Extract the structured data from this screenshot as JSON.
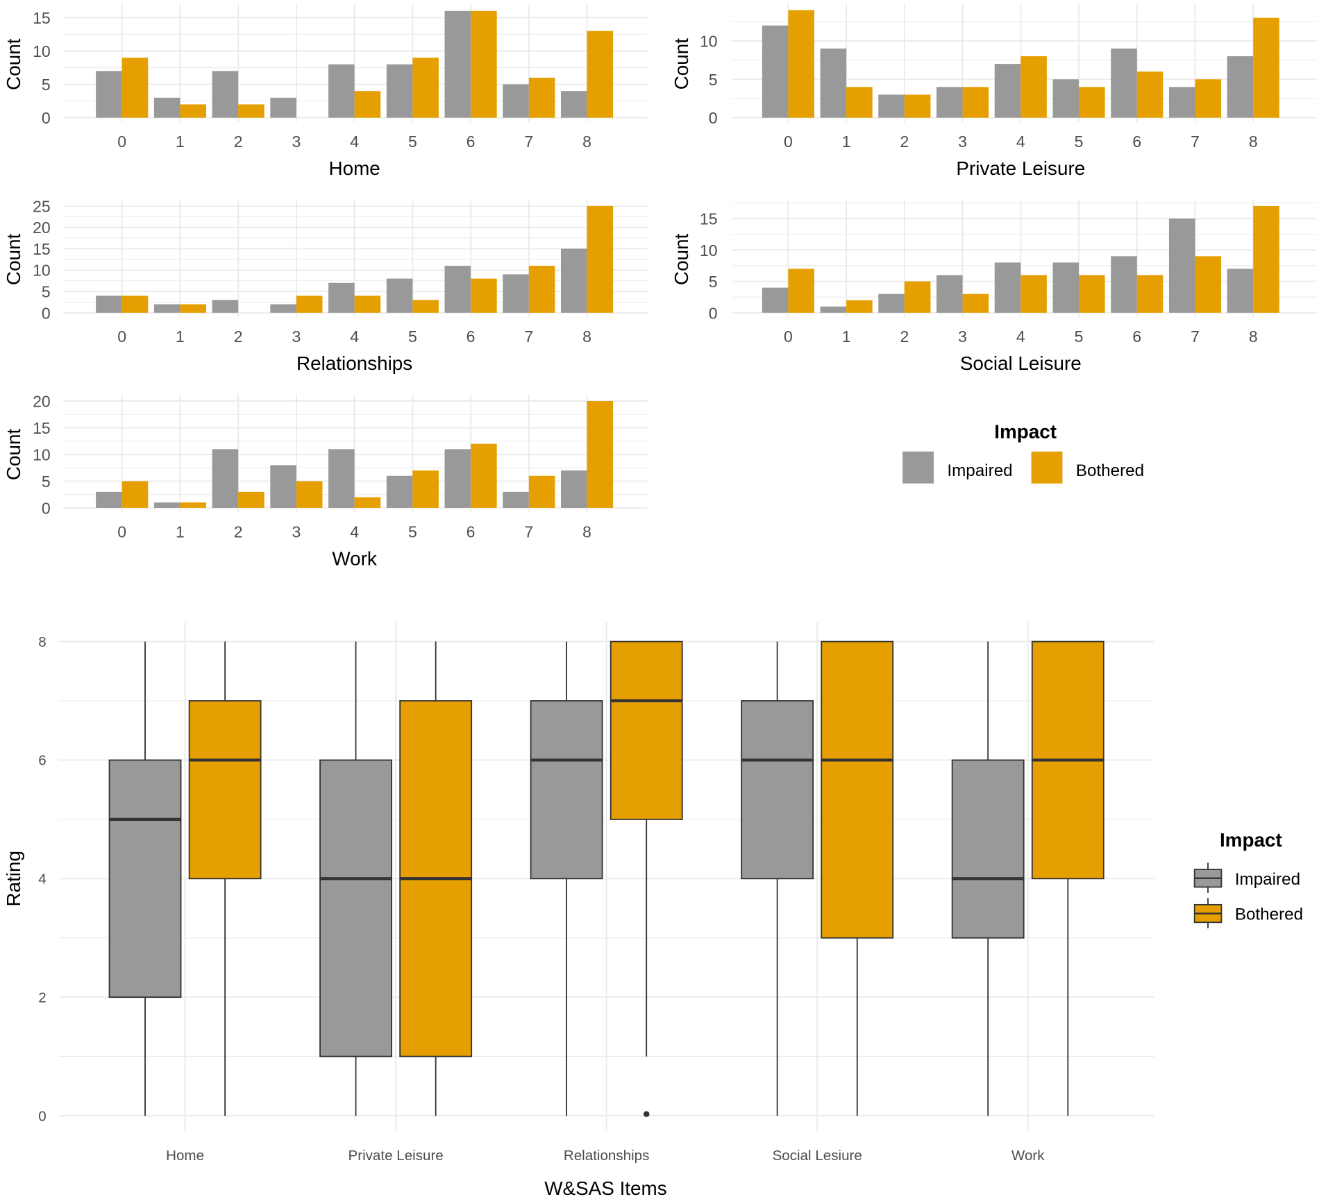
{
  "colors": {
    "Impaired": "#999999",
    "Bothered": "#E69F00",
    "grid": "#ebebeb",
    "box_line": "#333333"
  },
  "legend_top": {
    "title": "Impact",
    "items": [
      "Impaired",
      "Bothered"
    ],
    "placement": "right of panels"
  },
  "legend_bottom": {
    "title": "Impact",
    "items": [
      "Impaired",
      "Bothered"
    ],
    "placement": "right"
  },
  "chart_data": [
    {
      "type": "bar",
      "panel": "Home",
      "xlabel": "Home",
      "ylabel": "Count",
      "categories": [
        "0",
        "1",
        "2",
        "3",
        "4",
        "5",
        "6",
        "7",
        "8"
      ],
      "yticks": [
        0,
        5,
        10,
        15
      ],
      "ylim": [
        0,
        16
      ],
      "series": [
        {
          "name": "Impaired",
          "values": [
            7,
            3,
            7,
            3,
            8,
            8,
            16,
            5,
            4
          ]
        },
        {
          "name": "Bothered",
          "values": [
            9,
            2,
            2,
            0,
            4,
            9,
            16,
            6,
            13
          ]
        }
      ]
    },
    {
      "type": "bar",
      "panel": "Private Leisure",
      "xlabel": "Private Leisure",
      "ylabel": "Count",
      "categories": [
        "0",
        "1",
        "2",
        "3",
        "4",
        "5",
        "6",
        "7",
        "8"
      ],
      "yticks": [
        0,
        5,
        10
      ],
      "ylim": [
        0,
        14
      ],
      "series": [
        {
          "name": "Impaired",
          "values": [
            12,
            9,
            3,
            4,
            7,
            5,
            9,
            4,
            8
          ]
        },
        {
          "name": "Bothered",
          "values": [
            14,
            4,
            3,
            4,
            8,
            4,
            6,
            5,
            13
          ]
        }
      ]
    },
    {
      "type": "bar",
      "panel": "Relationships",
      "xlabel": "Relationships",
      "ylabel": "Count",
      "categories": [
        "0",
        "1",
        "2",
        "3",
        "4",
        "5",
        "6",
        "7",
        "8"
      ],
      "yticks": [
        0,
        5,
        10,
        15,
        20,
        25
      ],
      "ylim": [
        0,
        25
      ],
      "series": [
        {
          "name": "Impaired",
          "values": [
            4,
            2,
            3,
            2,
            7,
            8,
            11,
            9,
            15
          ]
        },
        {
          "name": "Bothered",
          "values": [
            4,
            2,
            0,
            4,
            4,
            3,
            8,
            11,
            25
          ]
        }
      ]
    },
    {
      "type": "bar",
      "panel": "Social Leisure",
      "xlabel": "Social Leisure",
      "ylabel": "Count",
      "categories": [
        "0",
        "1",
        "2",
        "3",
        "4",
        "5",
        "6",
        "7",
        "8"
      ],
      "yticks": [
        0,
        5,
        10,
        15
      ],
      "ylim": [
        0,
        17
      ],
      "series": [
        {
          "name": "Impaired",
          "values": [
            4,
            1,
            3,
            6,
            8,
            8,
            9,
            15,
            7
          ]
        },
        {
          "name": "Bothered",
          "values": [
            7,
            2,
            5,
            3,
            6,
            6,
            6,
            9,
            17
          ]
        }
      ]
    },
    {
      "type": "bar",
      "panel": "Work",
      "xlabel": "Work",
      "ylabel": "Count",
      "categories": [
        "0",
        "1",
        "2",
        "3",
        "4",
        "5",
        "6",
        "7",
        "8"
      ],
      "yticks": [
        0,
        5,
        10,
        15,
        20
      ],
      "ylim": [
        0,
        20
      ],
      "series": [
        {
          "name": "Impaired",
          "values": [
            3,
            1,
            11,
            8,
            11,
            6,
            11,
            3,
            7
          ]
        },
        {
          "name": "Bothered",
          "values": [
            5,
            1,
            3,
            5,
            2,
            7,
            12,
            6,
            20
          ]
        }
      ]
    },
    {
      "type": "boxplot",
      "xlabel": "W&SAS Items",
      "ylabel": "Rating",
      "categories": [
        "Home",
        "Private Leisure",
        "Relationships",
        "Social Lesiure",
        "Work"
      ],
      "yticks": [
        0,
        2,
        4,
        6,
        8
      ],
      "ylim": [
        0,
        8
      ],
      "series": [
        {
          "name": "Impaired",
          "boxes": [
            {
              "min": 0,
              "q1": 2,
              "median": 5,
              "q3": 6,
              "max": 8,
              "outliers": []
            },
            {
              "min": 0,
              "q1": 1,
              "median": 4,
              "q3": 6,
              "max": 8,
              "outliers": []
            },
            {
              "min": 0,
              "q1": 4,
              "median": 6,
              "q3": 7,
              "max": 8,
              "outliers": []
            },
            {
              "min": 0,
              "q1": 4,
              "median": 6,
              "q3": 7,
              "max": 8,
              "outliers": []
            },
            {
              "min": 0,
              "q1": 3,
              "median": 4,
              "q3": 6,
              "max": 8,
              "outliers": []
            }
          ]
        },
        {
          "name": "Bothered",
          "boxes": [
            {
              "min": 0,
              "q1": 4,
              "median": 6,
              "q3": 7,
              "max": 8,
              "outliers": []
            },
            {
              "min": 0,
              "q1": 1,
              "median": 4,
              "q3": 7,
              "max": 8,
              "outliers": []
            },
            {
              "min": 1,
              "q1": 5,
              "median": 7,
              "q3": 8,
              "max": 8,
              "outliers": [
                0
              ]
            },
            {
              "min": 0,
              "q1": 3,
              "median": 6,
              "q3": 8,
              "max": 8,
              "outliers": []
            },
            {
              "min": 0,
              "q1": 4,
              "median": 6,
              "q3": 8,
              "max": 8,
              "outliers": []
            }
          ]
        }
      ]
    }
  ]
}
